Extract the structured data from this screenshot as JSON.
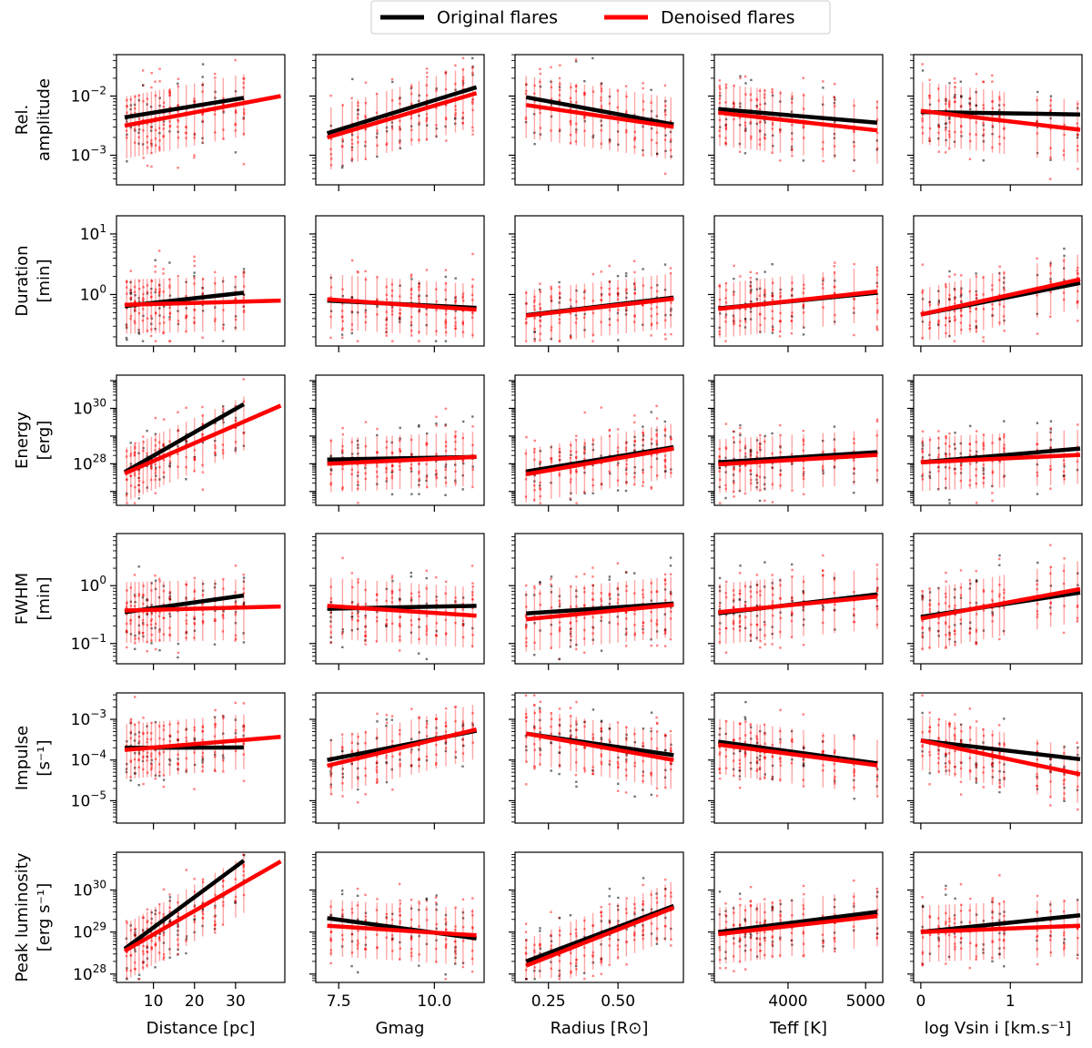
{
  "chart_data": {
    "type": "scatter",
    "legend": {
      "placement": "top-center",
      "entries": [
        {
          "name": "Original flares",
          "color": "#000000"
        },
        {
          "name": "Denoised flares",
          "color": "#ff0000"
        }
      ]
    },
    "columns": [
      {
        "key": "distance",
        "xlabel": "Distance [pc]",
        "xlim": [
          1.0,
          42.0
        ],
        "xticks": [
          10,
          20,
          30
        ],
        "xtick_labels": [
          "10",
          "20",
          "30"
        ],
        "cluster_x": [
          3.5,
          4.5,
          5.5,
          6.5,
          7.5,
          8.5,
          9.5,
          10.5,
          11.5,
          12.5,
          14,
          16,
          18,
          20,
          22,
          25,
          27,
          30,
          32
        ],
        "x_range": [
          3,
          32
        ]
      },
      {
        "key": "gmag",
        "xlabel": "Gmag",
        "xlim": [
          6.9,
          11.3
        ],
        "xticks": [
          7.5,
          10.0
        ],
        "xtick_labels": [
          "7.5",
          "10.0"
        ],
        "cluster_x": [
          7.3,
          7.6,
          7.85,
          8.0,
          8.2,
          8.5,
          8.75,
          8.9,
          9.1,
          9.4,
          9.6,
          9.8,
          10.05,
          10.3,
          10.55,
          10.75,
          11.0
        ],
        "x_range": [
          7.2,
          11.1
        ]
      },
      {
        "key": "radius",
        "xlabel": "Radius [R⊙]",
        "xlim": [
          0.13,
          0.735
        ],
        "xticks": [
          0.25,
          0.5
        ],
        "xtick_labels": [
          "0.25",
          "0.50"
        ],
        "cluster_x": [
          0.17,
          0.2,
          0.22,
          0.26,
          0.29,
          0.33,
          0.35,
          0.38,
          0.41,
          0.44,
          0.47,
          0.5,
          0.53,
          0.56,
          0.59,
          0.62,
          0.64,
          0.67,
          0.69
        ],
        "x_range": [
          0.17,
          0.7
        ]
      },
      {
        "key": "teff",
        "xlabel": "Teff [K]",
        "xlim": [
          3050,
          5220
        ],
        "xticks": [
          4000,
          5000
        ],
        "xtick_labels": [
          "4000",
          "5000"
        ],
        "cluster_x": [
          3120,
          3200,
          3300,
          3380,
          3450,
          3520,
          3600,
          3640,
          3700,
          3800,
          3900,
          4050,
          4200,
          4450,
          4600,
          4850,
          5150
        ],
        "x_range": [
          3100,
          5150
        ]
      },
      {
        "key": "vsini",
        "xlabel": "log Vsin i [km.s⁻¹]",
        "xlim": [
          -0.08,
          1.8
        ],
        "xticks": [
          0,
          1
        ],
        "xtick_labels": [
          "0",
          "1"
        ],
        "cluster_x": [
          0.02,
          0.1,
          0.2,
          0.28,
          0.32,
          0.38,
          0.45,
          0.55,
          0.62,
          0.7,
          0.8,
          0.88,
          0.93,
          1.3,
          1.45,
          1.6,
          1.75
        ],
        "x_range": [
          0,
          1.78
        ]
      }
    ],
    "rows": [
      {
        "key": "rel_amplitude",
        "ylabel": [
          "Rel.",
          "amplitude"
        ],
        "ylim_log10": [
          -3.5,
          -1.3
        ],
        "yticks_log10": [
          -2,
          -3
        ],
        "ytick_labels": [
          {
            "base": "10",
            "exp": "−2"
          },
          {
            "base": "10",
            "exp": "−3"
          }
        ],
        "y_center_log10": -2.25,
        "y_spread": 0.35,
        "fits": [
          {
            "original": [
              [
                3,
                -2.36
              ],
              [
                32,
                -2.03
              ]
            ],
            "denoised": [
              [
                3,
                -2.5
              ],
              [
                41,
                -2.0
              ]
            ]
          },
          {
            "original": [
              [
                7.2,
                -2.63
              ],
              [
                11.1,
                -1.85
              ]
            ],
            "denoised": [
              [
                7.2,
                -2.7
              ],
              [
                11.1,
                -1.95
              ]
            ]
          },
          {
            "original": [
              [
                0.17,
                -2.02
              ],
              [
                0.7,
                -2.48
              ]
            ],
            "denoised": [
              [
                0.17,
                -2.15
              ],
              [
                0.7,
                -2.52
              ]
            ]
          },
          {
            "original": [
              [
                3100,
                -2.22
              ],
              [
                5150,
                -2.45
              ]
            ],
            "denoised": [
              [
                3100,
                -2.28
              ],
              [
                5150,
                -2.58
              ]
            ]
          },
          {
            "original": [
              [
                0,
                -2.27
              ],
              [
                1.78,
                -2.31
              ]
            ],
            "denoised": [
              [
                0,
                -2.25
              ],
              [
                1.78,
                -2.57
              ]
            ]
          }
        ]
      },
      {
        "key": "duration",
        "ylabel": [
          "Duration",
          "[min]"
        ],
        "ylim_log10": [
          -0.85,
          1.3
        ],
        "yticks_log10": [
          1,
          0
        ],
        "ytick_labels": [
          {
            "base": "10",
            "exp": "1"
          },
          {
            "base": "10",
            "exp": "0"
          }
        ],
        "y_center_log10": -0.05,
        "y_spread": 0.3,
        "fits": [
          {
            "original": [
              [
                3,
                -0.19
              ],
              [
                32,
                0.03
              ]
            ],
            "denoised": [
              [
                3,
                -0.17
              ],
              [
                41,
                -0.1
              ]
            ]
          },
          {
            "original": [
              [
                7.2,
                -0.1
              ],
              [
                11.1,
                -0.22
              ]
            ],
            "denoised": [
              [
                7.2,
                -0.08
              ],
              [
                11.1,
                -0.25
              ]
            ]
          },
          {
            "original": [
              [
                0.17,
                -0.34
              ],
              [
                0.7,
                -0.05
              ]
            ],
            "denoised": [
              [
                0.17,
                -0.35
              ],
              [
                0.7,
                -0.07
              ]
            ]
          },
          {
            "original": [
              [
                3100,
                -0.23
              ],
              [
                5150,
                0.03
              ]
            ],
            "denoised": [
              [
                3100,
                -0.24
              ],
              [
                5150,
                0.05
              ]
            ]
          },
          {
            "original": [
              [
                0,
                -0.33
              ],
              [
                1.78,
                0.19
              ]
            ],
            "denoised": [
              [
                0,
                -0.33
              ],
              [
                1.78,
                0.25
              ]
            ]
          }
        ]
      },
      {
        "key": "energy",
        "ylabel": [
          "Energy",
          "[erg]"
        ],
        "ylim_log10": [
          26.5,
          31.2
        ],
        "yticks_log10": [
          30,
          28
        ],
        "ytick_labels": [
          {
            "base": "10",
            "exp": "30"
          },
          {
            "base": "10",
            "exp": "28"
          }
        ],
        "y_center_log10": 28.3,
        "y_spread": 0.65,
        "fits": [
          {
            "original": [
              [
                3,
                27.7
              ],
              [
                32,
                30.15
              ]
            ],
            "denoised": [
              [
                3,
                27.65
              ],
              [
                41,
                30.1
              ]
            ]
          },
          {
            "original": [
              [
                7.2,
                28.15
              ],
              [
                11.1,
                28.25
              ]
            ],
            "denoised": [
              [
                7.2,
                28.0
              ],
              [
                11.1,
                28.25
              ]
            ]
          },
          {
            "original": [
              [
                0.17,
                27.72
              ],
              [
                0.7,
                28.6
              ]
            ],
            "denoised": [
              [
                0.17,
                27.62
              ],
              [
                0.7,
                28.55
              ]
            ]
          },
          {
            "original": [
              [
                3100,
                28.05
              ],
              [
                5150,
                28.42
              ]
            ],
            "denoised": [
              [
                3100,
                27.98
              ],
              [
                5150,
                28.32
              ]
            ]
          },
          {
            "original": [
              [
                0,
                28.05
              ],
              [
                1.78,
                28.55
              ]
            ],
            "denoised": [
              [
                0,
                28.05
              ],
              [
                1.78,
                28.32
              ]
            ]
          }
        ]
      },
      {
        "key": "fwhm",
        "ylabel": [
          "FWHM",
          "[min]"
        ],
        "ylim_log10": [
          -1.35,
          0.9
        ],
        "yticks_log10": [
          0,
          -1
        ],
        "ytick_labels": [
          {
            "base": "10",
            "exp": "0"
          },
          {
            "base": "10",
            "exp": "−1"
          }
        ],
        "y_center_log10": -0.4,
        "y_spread": 0.35,
        "fits": [
          {
            "original": [
              [
                3,
                -0.46
              ],
              [
                32,
                -0.17
              ]
            ],
            "denoised": [
              [
                3,
                -0.43
              ],
              [
                41,
                -0.36
              ]
            ]
          },
          {
            "original": [
              [
                7.2,
                -0.4
              ],
              [
                11.1,
                -0.35
              ]
            ],
            "denoised": [
              [
                7.2,
                -0.35
              ],
              [
                11.1,
                -0.52
              ]
            ]
          },
          {
            "original": [
              [
                0.17,
                -0.48
              ],
              [
                0.7,
                -0.31
              ]
            ],
            "denoised": [
              [
                0.17,
                -0.58
              ],
              [
                0.7,
                -0.33
              ]
            ]
          },
          {
            "original": [
              [
                3100,
                -0.48
              ],
              [
                5150,
                -0.15
              ]
            ],
            "denoised": [
              [
                3100,
                -0.46
              ],
              [
                5150,
                -0.19
              ]
            ]
          },
          {
            "original": [
              [
                0,
                -0.54
              ],
              [
                1.78,
                -0.12
              ]
            ],
            "denoised": [
              [
                0,
                -0.57
              ],
              [
                1.78,
                -0.06
              ]
            ]
          }
        ]
      },
      {
        "key": "impulse",
        "ylabel": [
          "Impulse",
          "[s⁻¹]"
        ],
        "ylim_log10": [
          -5.55,
          -2.35
        ],
        "yticks_log10": [
          -3,
          -4,
          -5
        ],
        "ytick_labels": [
          {
            "base": "10",
            "exp": "−3"
          },
          {
            "base": "10",
            "exp": "−4"
          },
          {
            "base": "10",
            "exp": "−5"
          }
        ],
        "y_center_log10": -3.55,
        "y_spread": 0.45,
        "fits": [
          {
            "original": [
              [
                3,
                -3.7
              ],
              [
                32,
                -3.69
              ]
            ],
            "denoised": [
              [
                3,
                -3.75
              ],
              [
                41,
                -3.43
              ]
            ]
          },
          {
            "original": [
              [
                7.2,
                -4.0
              ],
              [
                11.1,
                -3.28
              ]
            ],
            "denoised": [
              [
                7.2,
                -4.14
              ],
              [
                11.1,
                -3.25
              ]
            ]
          },
          {
            "original": [
              [
                0.17,
                -3.35
              ],
              [
                0.7,
                -3.88
              ]
            ],
            "denoised": [
              [
                0.17,
                -3.35
              ],
              [
                0.7,
                -4.0
              ]
            ]
          },
          {
            "original": [
              [
                3100,
                -3.55
              ],
              [
                5150,
                -4.08
              ]
            ],
            "denoised": [
              [
                3100,
                -3.62
              ],
              [
                5150,
                -4.13
              ]
            ]
          },
          {
            "original": [
              [
                0,
                -3.52
              ],
              [
                1.78,
                -3.98
              ]
            ],
            "denoised": [
              [
                0,
                -3.52
              ],
              [
                1.78,
                -4.35
              ]
            ]
          }
        ]
      },
      {
        "key": "peak_luminosity",
        "ylabel": [
          "Peak luminosity",
          "[erg s⁻¹]"
        ],
        "ylim_log10": [
          27.8,
          30.9
        ],
        "yticks_log10": [
          30,
          29,
          28
        ],
        "ytick_labels": [
          {
            "base": "10",
            "exp": "30"
          },
          {
            "base": "10",
            "exp": "29"
          },
          {
            "base": "10",
            "exp": "28"
          }
        ],
        "y_center_log10": 29.05,
        "y_spread": 0.45,
        "fits": [
          {
            "original": [
              [
                3,
                28.6
              ],
              [
                32,
                30.7
              ]
            ],
            "denoised": [
              [
                3,
                28.55
              ],
              [
                41,
                30.68
              ]
            ]
          },
          {
            "original": [
              [
                7.2,
                29.33
              ],
              [
                11.1,
                28.85
              ]
            ],
            "denoised": [
              [
                7.2,
                29.15
              ],
              [
                11.1,
                28.92
              ]
            ]
          },
          {
            "original": [
              [
                0.17,
                28.3
              ],
              [
                0.7,
                29.62
              ]
            ],
            "denoised": [
              [
                0.17,
                28.2
              ],
              [
                0.7,
                29.58
              ]
            ]
          },
          {
            "original": [
              [
                3100,
                29.0
              ],
              [
                5150,
                29.48
              ]
            ],
            "denoised": [
              [
                3100,
                28.95
              ],
              [
                5150,
                29.38
              ]
            ]
          },
          {
            "original": [
              [
                0,
                29.0
              ],
              [
                1.78,
                29.4
              ]
            ],
            "denoised": [
              [
                0,
                29.0
              ],
              [
                1.78,
                29.15
              ]
            ]
          }
        ]
      }
    ]
  }
}
